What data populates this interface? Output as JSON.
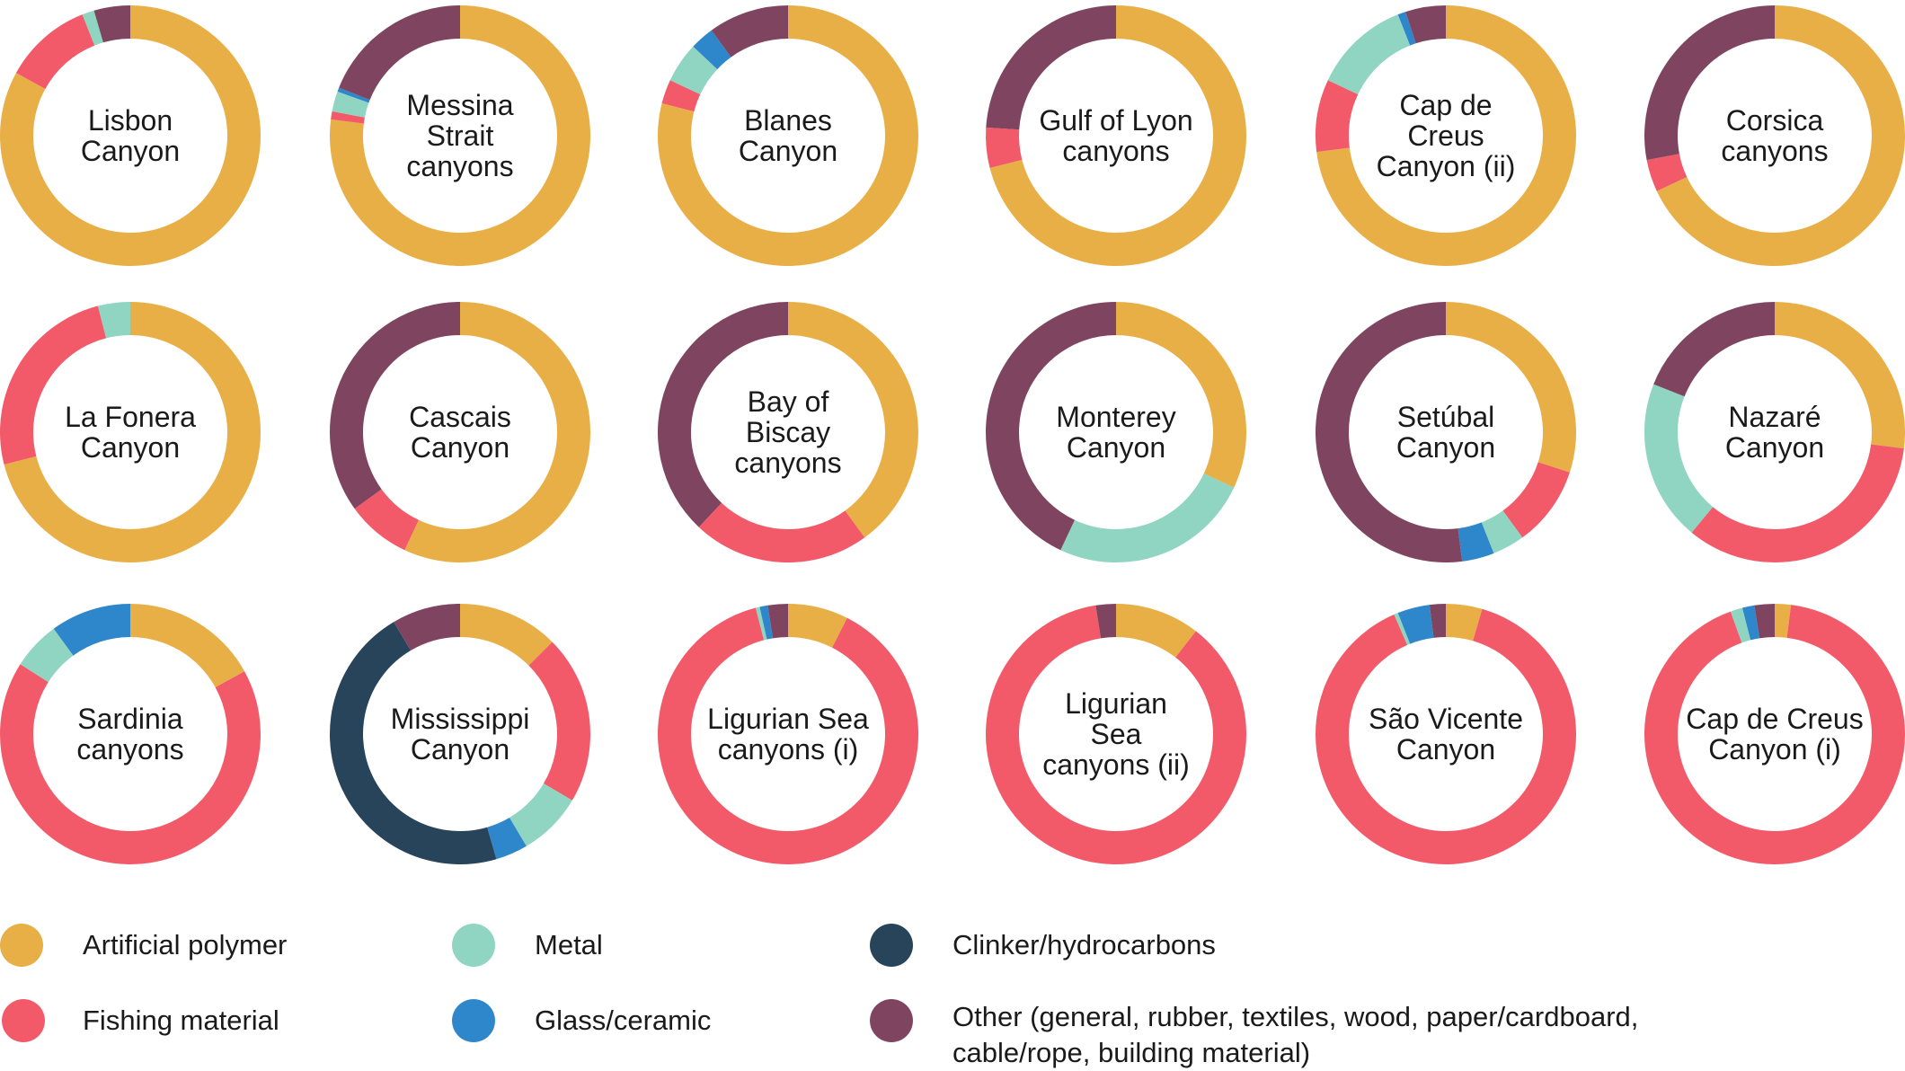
{
  "chart_data": {
    "type": "donut",
    "categories": [
      "Artificial polymer",
      "Fishing material",
      "Metal",
      "Glass/ceramic",
      "Clinker/hydrocarbons",
      "Other (general, rubber, textiles, wood, paper/cardboard, cable/rope, building material)"
    ],
    "colors": [
      "#E8AF47",
      "#F25A69",
      "#8FD5C2",
      "#2E86CB",
      "#27445B",
      "#7F4560"
    ],
    "unit": "percent",
    "charts": [
      {
        "label": [
          "Lisbon",
          "Canyon"
        ],
        "values": [
          83,
          11,
          1.5,
          0,
          0,
          4.5
        ]
      },
      {
        "label": [
          "Messina",
          "Strait",
          "canyons"
        ],
        "values": [
          77,
          1,
          2.5,
          0.5,
          0,
          19
        ]
      },
      {
        "label": [
          "Blanes",
          "Canyon"
        ],
        "values": [
          79,
          3,
          5,
          3,
          0,
          10
        ]
      },
      {
        "label": [
          "Gulf of Lyon",
          "canyons"
        ],
        "values": [
          71,
          5,
          0,
          0,
          0,
          24
        ]
      },
      {
        "label": [
          "Cap de",
          "Creus",
          "Canyon (ii)"
        ],
        "values": [
          73,
          9,
          12,
          1,
          0,
          5
        ]
      },
      {
        "label": [
          "Corsica",
          "canyons"
        ],
        "values": [
          68,
          4,
          0,
          0,
          0,
          28
        ]
      },
      {
        "label": [
          "La Fonera",
          "Canyon"
        ],
        "values": [
          71,
          25,
          4,
          0,
          0,
          0
        ]
      },
      {
        "label": [
          "Cascais",
          "Canyon"
        ],
        "values": [
          57,
          8,
          0,
          0,
          0,
          35
        ]
      },
      {
        "label": [
          "Bay of",
          "Biscay",
          "canyons"
        ],
        "values": [
          40,
          22,
          0,
          0,
          0,
          38
        ]
      },
      {
        "label": [
          "Monterey",
          "Canyon"
        ],
        "values": [
          32,
          0,
          25,
          0,
          0,
          43
        ]
      },
      {
        "label": [
          "Setúbal",
          "Canyon"
        ],
        "values": [
          30,
          10,
          4,
          4,
          0,
          52
        ]
      },
      {
        "label": [
          "Nazaré",
          "Canyon"
        ],
        "values": [
          27,
          34,
          20,
          0,
          0,
          19
        ]
      },
      {
        "label": [
          "Sardinia",
          "canyons"
        ],
        "values": [
          17,
          67,
          6,
          10,
          0,
          0
        ]
      },
      {
        "label": [
          "Mississippi",
          "Canyon"
        ],
        "values": [
          12.5,
          21,
          8,
          4,
          46,
          8.5
        ]
      },
      {
        "label": [
          "Ligurian Sea",
          "canyons (i)"
        ],
        "values": [
          7.5,
          88.5,
          0.5,
          1,
          0,
          2.5
        ]
      },
      {
        "label": [
          "Ligurian",
          "Sea",
          "canyons (ii)"
        ],
        "values": [
          10.5,
          87,
          0,
          0,
          0,
          2.5
        ]
      },
      {
        "label": [
          "São Vicente",
          "Canyon"
        ],
        "values": [
          4.5,
          89,
          0.5,
          4,
          0,
          2
        ]
      },
      {
        "label": [
          "Cap de Creus",
          "Canyon (i)"
        ],
        "values": [
          2,
          92.5,
          1.5,
          1.5,
          0,
          2.5
        ]
      }
    ]
  },
  "legend": {
    "items": [
      {
        "text": "Artificial polymer",
        "color": "#E8AF47"
      },
      {
        "text": "Fishing material",
        "color": "#F25A69"
      },
      {
        "text": "Metal",
        "color": "#8FD5C2"
      },
      {
        "text": "Glass/ceramic",
        "color": "#2E86CB"
      },
      {
        "text": "Clinker/hydrocarbons",
        "color": "#27445B"
      },
      {
        "text": "Other (general, rubber, textiles, wood, paper/cardboard,",
        "text2": "cable/rope, building material)",
        "color": "#7F4560"
      }
    ]
  }
}
